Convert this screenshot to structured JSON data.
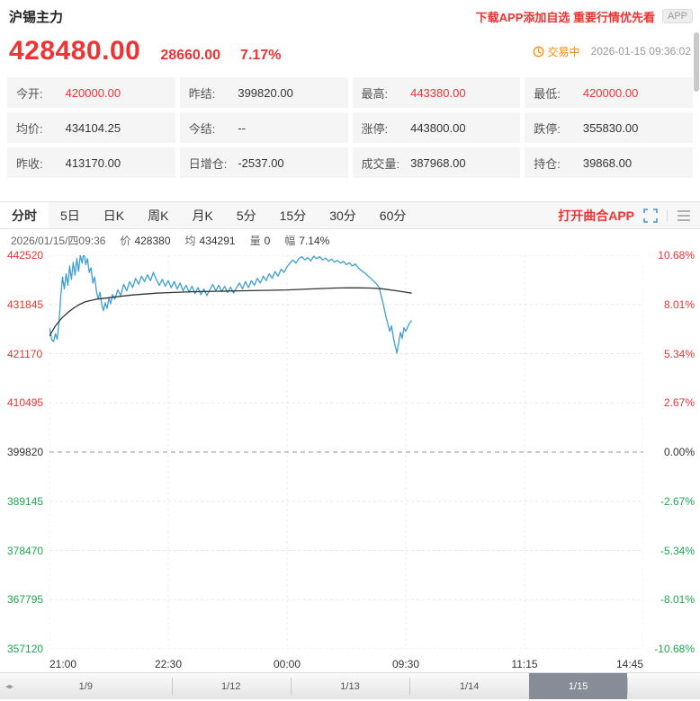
{
  "colors": {
    "up": "#ED3333",
    "down": "#1DA750",
    "neutral": "#333333",
    "status": "#FF8A00",
    "price_line": "#3E9ECF",
    "avg_line": "#333333",
    "link_blue": "#4A90D9",
    "navigator_window": "#868D96"
  },
  "header": {
    "title": "沪锡主力",
    "promo": "下载APP添加自选 重要行情优先看",
    "app_badge": "APP"
  },
  "price": {
    "current": "428480.00",
    "change": "28660.00",
    "change_pct": "7.17%",
    "status": "交易中",
    "timestamp": "2026-01-15 09:36:02"
  },
  "quote_grid": {
    "cells": [
      {
        "label": "今开:",
        "value": "420000.00",
        "color": "up"
      },
      {
        "label": "昨结:",
        "value": "399820.00",
        "color": "neutral"
      },
      {
        "label": "最高:",
        "value": "443380.00",
        "color": "up"
      },
      {
        "label": "最低:",
        "value": "420000.00",
        "color": "up"
      },
      {
        "label": "均价:",
        "value": "434104.25",
        "color": "neutral"
      },
      {
        "label": "今结:",
        "value": "--",
        "color": "neutral"
      },
      {
        "label": "涨停:",
        "value": "443800.00",
        "color": "neutral"
      },
      {
        "label": "跌停:",
        "value": "355830.00",
        "color": "neutral"
      },
      {
        "label": "昨收:",
        "value": "413170.00",
        "color": "neutral"
      },
      {
        "label": "日增仓:",
        "value": "-2537.00",
        "color": "neutral"
      },
      {
        "label": "成交量:",
        "value": "387968.00",
        "color": "neutral"
      },
      {
        "label": "持仓:",
        "value": "39868.00",
        "color": "neutral"
      }
    ]
  },
  "tabs": {
    "items": [
      {
        "name": "tab-minute",
        "label": "分时",
        "active": true
      },
      {
        "name": "tab-5day",
        "label": "5日",
        "active": false
      },
      {
        "name": "tab-daily-k",
        "label": "日K",
        "active": false
      },
      {
        "name": "tab-weekly-k",
        "label": "周K",
        "active": false
      },
      {
        "name": "tab-monthly-k",
        "label": "月K",
        "active": false
      },
      {
        "name": "tab-5min",
        "label": "5分",
        "active": false
      },
      {
        "name": "tab-15min",
        "label": "15分",
        "active": false
      },
      {
        "name": "tab-30min",
        "label": "30分",
        "active": false
      },
      {
        "name": "tab-60min",
        "label": "60分",
        "active": false
      }
    ],
    "open_app_label": "打开曲合APP"
  },
  "chart_info": {
    "datetime": "2026/01/15/四09:36",
    "price_label": "价",
    "price": "428380",
    "avg_label": "均",
    "avg": "434291",
    "vol_label": "量",
    "vol": "0",
    "amp_label": "幅",
    "amp": "7.14%"
  },
  "chart_data": {
    "type": "line",
    "title": "沪锡主力 分时走势",
    "ylim": [
      357120,
      442520
    ],
    "base_value": 399820,
    "y_axis_left": [
      442520,
      431845,
      421170,
      410495,
      399820,
      389145,
      378470,
      367795,
      357120
    ],
    "y_axis_right": [
      "10.68%",
      "8.01%",
      "5.34%",
      "2.67%",
      "0.00%",
      "-2.67%",
      "-5.34%",
      "-8.01%",
      "-10.68%"
    ],
    "x_labels": [
      "21:00",
      "22:30",
      "00:00",
      "09:30",
      "11:15",
      "14:45"
    ],
    "grid": true,
    "series": [
      {
        "name": "price",
        "color_key": "price_line",
        "points": [
          [
            0,
            426800
          ],
          [
            0.004,
            424200
          ],
          [
            0.007,
            423800
          ],
          [
            0.01,
            425500
          ],
          [
            0.013,
            424300
          ],
          [
            0.016,
            428000
          ],
          [
            0.019,
            433500
          ],
          [
            0.022,
            437800
          ],
          [
            0.025,
            435200
          ],
          [
            0.028,
            438500
          ],
          [
            0.031,
            436000
          ],
          [
            0.034,
            440200
          ],
          [
            0.037,
            437300
          ],
          [
            0.04,
            441000
          ],
          [
            0.043,
            438200
          ],
          [
            0.046,
            441800
          ],
          [
            0.049,
            439000
          ],
          [
            0.052,
            442500
          ],
          [
            0.055,
            440800
          ],
          [
            0.058,
            443380
          ],
          [
            0.061,
            440500
          ],
          [
            0.064,
            441800
          ],
          [
            0.067,
            438800
          ],
          [
            0.07,
            439800
          ],
          [
            0.073,
            436500
          ],
          [
            0.076,
            437800
          ],
          [
            0.079,
            434800
          ],
          [
            0.082,
            433000
          ],
          [
            0.085,
            434500
          ],
          [
            0.088,
            431800
          ],
          [
            0.091,
            430500
          ],
          [
            0.094,
            432200
          ],
          [
            0.097,
            431000
          ],
          [
            0.1,
            433200
          ],
          [
            0.103,
            432000
          ],
          [
            0.106,
            434000
          ],
          [
            0.11,
            433000
          ],
          [
            0.115,
            435000
          ],
          [
            0.12,
            433800
          ],
          [
            0.125,
            436200
          ],
          [
            0.13,
            434800
          ],
          [
            0.135,
            436800
          ],
          [
            0.14,
            435500
          ],
          [
            0.145,
            437500
          ],
          [
            0.15,
            436200
          ],
          [
            0.155,
            438000
          ],
          [
            0.16,
            436800
          ],
          [
            0.165,
            438300
          ],
          [
            0.17,
            437000
          ],
          [
            0.175,
            438800
          ],
          [
            0.18,
            437200
          ],
          [
            0.185,
            436000
          ],
          [
            0.19,
            437300
          ],
          [
            0.195,
            435800
          ],
          [
            0.2,
            437000
          ],
          [
            0.205,
            435500
          ],
          [
            0.21,
            436800
          ],
          [
            0.215,
            435200
          ],
          [
            0.22,
            436500
          ],
          [
            0.225,
            434800
          ],
          [
            0.23,
            436000
          ],
          [
            0.235,
            434500
          ],
          [
            0.24,
            435800
          ],
          [
            0.245,
            434200
          ],
          [
            0.25,
            435500
          ],
          [
            0.255,
            434000
          ],
          [
            0.26,
            435200
          ],
          [
            0.265,
            433800
          ],
          [
            0.27,
            435000
          ],
          [
            0.275,
            436200
          ],
          [
            0.28,
            434800
          ],
          [
            0.285,
            436000
          ],
          [
            0.29,
            434600
          ],
          [
            0.295,
            435800
          ],
          [
            0.3,
            434400
          ],
          [
            0.305,
            435600
          ],
          [
            0.31,
            434300
          ],
          [
            0.315,
            435500
          ],
          [
            0.32,
            436500
          ],
          [
            0.325,
            435200
          ],
          [
            0.33,
            436800
          ],
          [
            0.335,
            435500
          ],
          [
            0.34,
            437000
          ],
          [
            0.345,
            436000
          ],
          [
            0.35,
            437500
          ],
          [
            0.355,
            436500
          ],
          [
            0.36,
            438000
          ],
          [
            0.365,
            437000
          ],
          [
            0.37,
            438500
          ],
          [
            0.375,
            437500
          ],
          [
            0.38,
            439000
          ],
          [
            0.385,
            438000
          ],
          [
            0.39,
            439500
          ],
          [
            0.395,
            438800
          ],
          [
            0.4,
            440000
          ],
          [
            0.405,
            440800
          ],
          [
            0.41,
            441500
          ],
          [
            0.415,
            440800
          ],
          [
            0.42,
            441800
          ],
          [
            0.425,
            442200
          ],
          [
            0.43,
            441500
          ],
          [
            0.435,
            442000
          ],
          [
            0.44,
            441300
          ],
          [
            0.445,
            442300
          ],
          [
            0.45,
            441800
          ],
          [
            0.455,
            442200
          ],
          [
            0.46,
            441500
          ],
          [
            0.465,
            441900
          ],
          [
            0.47,
            441200
          ],
          [
            0.475,
            441700
          ],
          [
            0.48,
            441000
          ],
          [
            0.485,
            441400
          ],
          [
            0.49,
            440800
          ],
          [
            0.495,
            441200
          ],
          [
            0.5,
            440500
          ],
          [
            0.505,
            440900
          ],
          [
            0.51,
            440200
          ],
          [
            0.515,
            440600
          ],
          [
            0.52,
            439800
          ],
          [
            0.525,
            439200
          ],
          [
            0.53,
            438800
          ],
          [
            0.535,
            438200
          ],
          [
            0.54,
            437600
          ],
          [
            0.545,
            437000
          ],
          [
            0.55,
            436400
          ],
          [
            0.555,
            435600
          ],
          [
            0.558,
            434000
          ],
          [
            0.561,
            432500
          ],
          [
            0.564,
            430800
          ],
          [
            0.567,
            429000
          ],
          [
            0.57,
            427500
          ],
          [
            0.573,
            426000
          ],
          [
            0.576,
            427200
          ],
          [
            0.579,
            424800
          ],
          [
            0.582,
            423000
          ],
          [
            0.585,
            421300
          ],
          [
            0.588,
            423500
          ],
          [
            0.591,
            425800
          ],
          [
            0.594,
            424500
          ],
          [
            0.597,
            426800
          ],
          [
            0.6,
            426000
          ],
          [
            0.605,
            427500
          ],
          [
            0.61,
            428380
          ]
        ]
      },
      {
        "name": "average",
        "color_key": "avg_line",
        "points": [
          [
            0,
            425000
          ],
          [
            0.01,
            427200
          ],
          [
            0.02,
            428800
          ],
          [
            0.03,
            430000
          ],
          [
            0.04,
            431000
          ],
          [
            0.05,
            431800
          ],
          [
            0.06,
            432400
          ],
          [
            0.08,
            433000
          ],
          [
            0.1,
            433300
          ],
          [
            0.12,
            433600
          ],
          [
            0.14,
            433900
          ],
          [
            0.16,
            434100
          ],
          [
            0.18,
            434300
          ],
          [
            0.2,
            434400
          ],
          [
            0.24,
            434600
          ],
          [
            0.28,
            434700
          ],
          [
            0.32,
            434800
          ],
          [
            0.36,
            434900
          ],
          [
            0.4,
            435000
          ],
          [
            0.44,
            435200
          ],
          [
            0.48,
            435400
          ],
          [
            0.5,
            435450
          ],
          [
            0.52,
            435450
          ],
          [
            0.54,
            435400
          ],
          [
            0.56,
            435250
          ],
          [
            0.58,
            434900
          ],
          [
            0.6,
            434500
          ],
          [
            0.61,
            434291
          ]
        ]
      }
    ]
  },
  "navigator": {
    "dates": [
      "1/9",
      "1/12",
      "1/13",
      "1/14",
      "1/15"
    ],
    "selected_index": 4
  }
}
